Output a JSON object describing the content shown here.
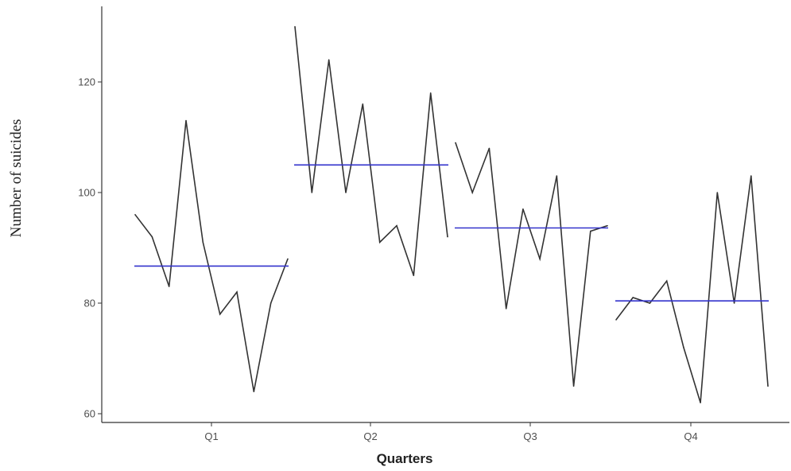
{
  "chart_data": {
    "type": "line",
    "xlabel": "Quarters",
    "ylabel": "Number of suicides",
    "ylim": [
      58,
      135
    ],
    "y_ticks": [
      60,
      80,
      100,
      120
    ],
    "categories": [
      "Q1",
      "Q2",
      "Q3",
      "Q4"
    ],
    "grid": false,
    "legend": "none",
    "colors": {
      "series": "#333333",
      "mean": "#3333cc",
      "axis": "#333333"
    },
    "groups": [
      {
        "name": "Q1",
        "values": [
          96,
          92,
          83,
          113,
          91,
          78,
          82,
          64,
          80,
          88
        ],
        "mean": 86.7
      },
      {
        "name": "Q2",
        "values": [
          130,
          100,
          124,
          100,
          116,
          91,
          94,
          85,
          118,
          92
        ],
        "mean": 105
      },
      {
        "name": "Q3",
        "values": [
          109,
          100,
          108,
          79,
          97,
          88,
          103,
          65,
          93,
          94
        ],
        "mean": 93.6
      },
      {
        "name": "Q4",
        "values": [
          77,
          81,
          80,
          84,
          72,
          62,
          100,
          80,
          103,
          65
        ],
        "mean": 80.4
      }
    ]
  }
}
